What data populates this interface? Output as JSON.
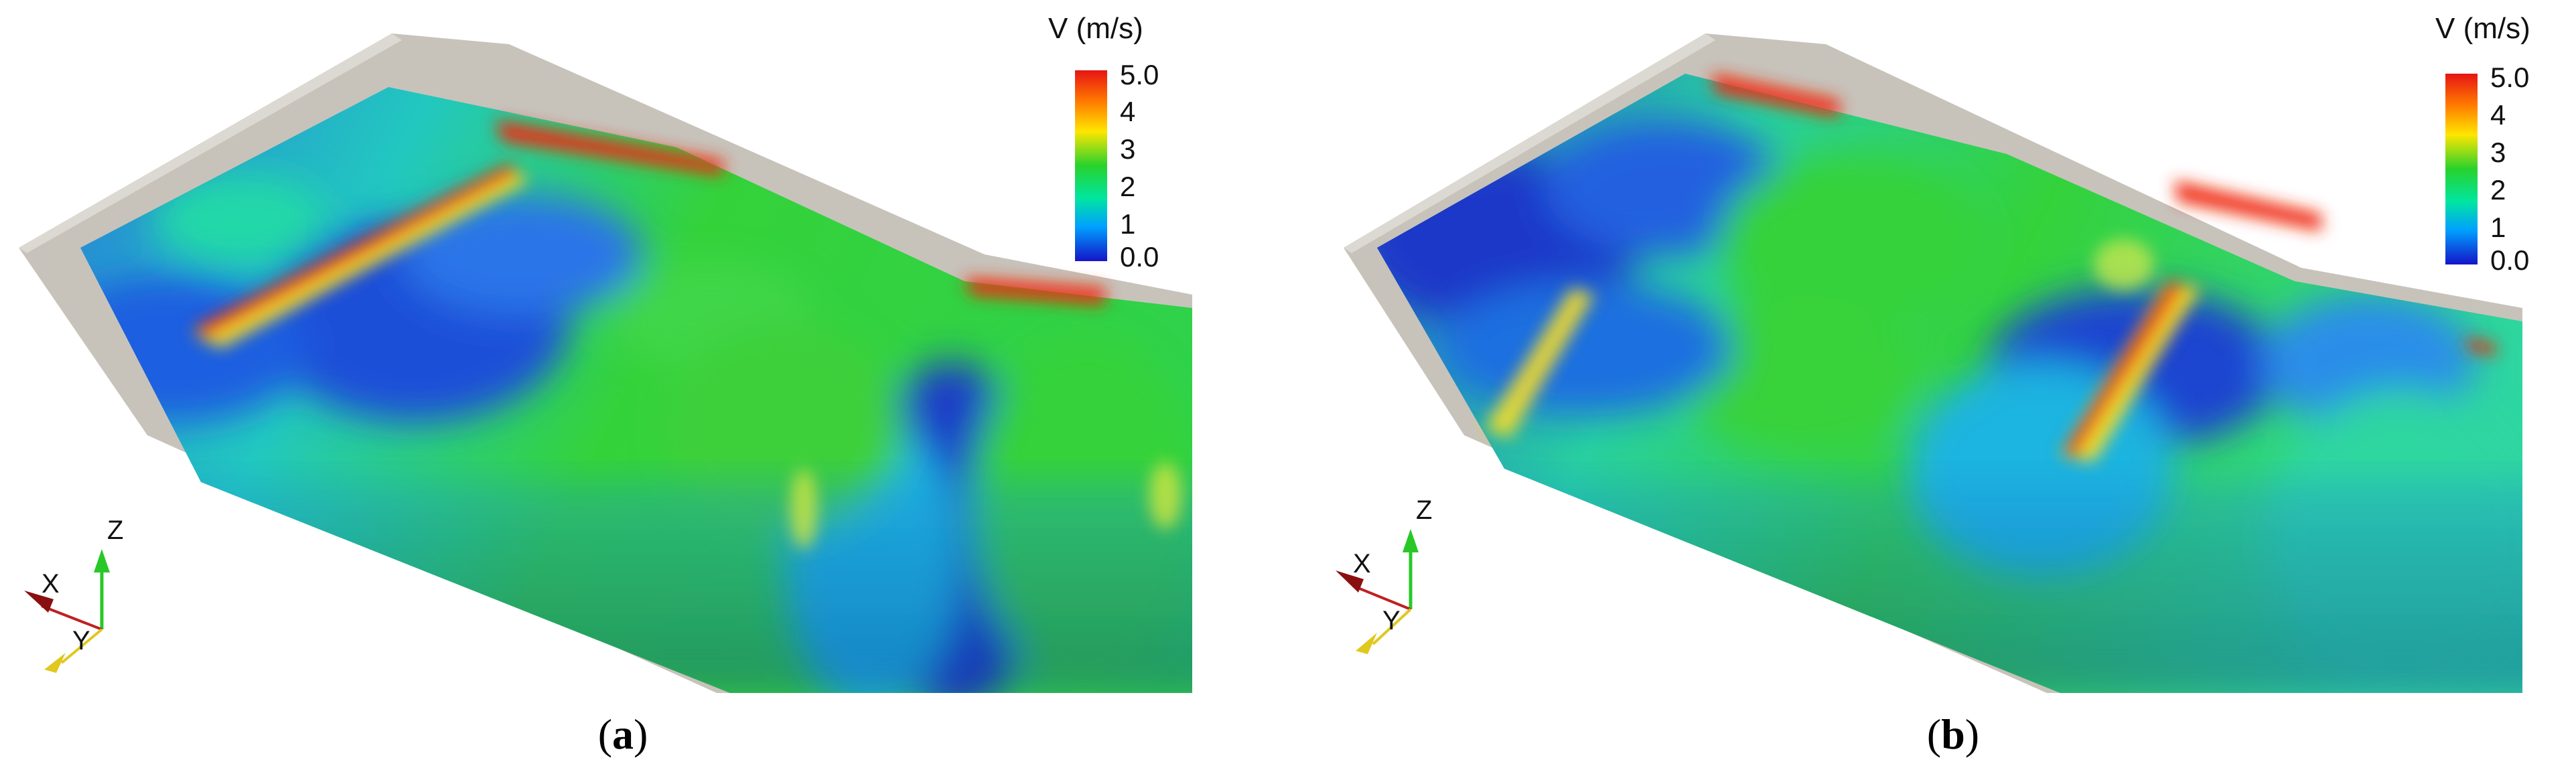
{
  "panels": [
    {
      "caption_open": "(",
      "caption_letter": "a",
      "caption_close": ")",
      "colorbar": {
        "title": "V (m/s)",
        "ticks": [
          "5.0",
          "4",
          "3",
          "2",
          "1",
          "0.0"
        ],
        "min": 0.0,
        "max": 5.0,
        "colors": [
          "#1414c8",
          "#00a0ff",
          "#00e6a0",
          "#28d22d",
          "#ffe600",
          "#ff7800",
          "#e61414"
        ]
      },
      "axes": {
        "x": "X",
        "y": "Y",
        "z": "Z"
      }
    },
    {
      "caption_open": "(",
      "caption_letter": "b",
      "caption_close": ")",
      "colorbar": {
        "title": "V (m/s)",
        "ticks": [
          "5.0",
          "4",
          "3",
          "2",
          "1",
          "0.0"
        ],
        "min": 0.0,
        "max": 5.0,
        "colors": [
          "#1414c8",
          "#00a0ff",
          "#00e6a0",
          "#28d22d",
          "#ffe600",
          "#ff7800",
          "#e61414"
        ]
      },
      "axes": {
        "x": "X",
        "y": "Y",
        "z": "Z"
      }
    }
  ]
}
